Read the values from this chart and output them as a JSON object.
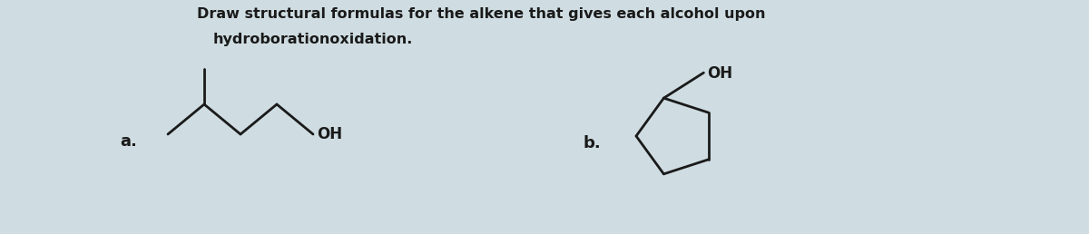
{
  "title_line1": "Draw structural formulas for the alkene that gives each alcohol upon",
  "title_line2": "hydroborationoxidation.",
  "background_color": "#cfdde2",
  "label_a": "a.",
  "label_b": "b.",
  "label_fontsize": 13,
  "label_fontweight": "bold",
  "title_fontsize": 11.5,
  "title_fontweight": "bold",
  "oh_fontsize": 12,
  "oh_fontweight": "bold",
  "line_color": "#1a1a1a",
  "line_lw": 2.0
}
